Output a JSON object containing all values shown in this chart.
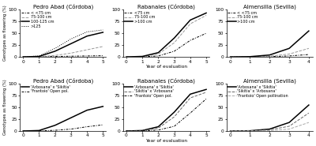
{
  "titles_top": [
    "Pedro Abad (Córdoba)",
    "Rabanales (Córdoba)",
    "Almensilla (Sevilla)"
  ],
  "titles_bot": [
    "Pedro Abad (Córdoba)",
    "Rabanales (Córdoba)",
    "Almensilla (Sevilla)"
  ],
  "ylabel": "Genotypes as flowering (%)",
  "xlabel": "Year of evaluation",
  "top_pedro": {
    "x": [
      0,
      1,
      2,
      3,
      4,
      5
    ],
    "lt75": [
      0,
      0.3,
      0.8,
      1.5,
      2.0,
      2.5
    ],
    "75_100": [
      0,
      0.5,
      3.0,
      8.0,
      15.0,
      22.0
    ],
    "100_125": [
      0,
      1.0,
      12.0,
      28.0,
      44.0,
      52.0
    ],
    "gt125": [
      0,
      2.0,
      18.0,
      38.0,
      53.0,
      57.0
    ],
    "xlim": [
      -0.2,
      5.2
    ],
    "ylim": [
      0,
      100
    ],
    "xticks": [
      0,
      1,
      2,
      3,
      4,
      5
    ]
  },
  "top_rabanales": {
    "x": [
      0,
      1,
      2,
      3,
      4,
      5
    ],
    "lt75": [
      0,
      0.2,
      2.0,
      12.0,
      35.0,
      50.0
    ],
    "75_100": [
      0,
      0.5,
      6.0,
      30.0,
      70.0,
      88.0
    ],
    "gt100": [
      0,
      1.0,
      9.0,
      40.0,
      78.0,
      93.0
    ],
    "xlim": [
      -0.2,
      5.2
    ],
    "ylim": [
      0,
      100
    ],
    "xticks": [
      0,
      1,
      2,
      3,
      4,
      5
    ]
  },
  "top_almensilla": {
    "x": [
      0,
      1,
      2,
      3,
      4
    ],
    "lt75": [
      0,
      0.0,
      0.5,
      2.0,
      5.0
    ],
    "75_100": [
      0,
      0.0,
      1.5,
      6.0,
      18.0
    ],
    "gt100": [
      0,
      0.5,
      4.0,
      18.0,
      55.0
    ],
    "xlim": [
      -0.2,
      4.2
    ],
    "ylim": [
      0,
      100
    ],
    "xticks": [
      0,
      1,
      2,
      3,
      4
    ]
  },
  "bot_pedro": {
    "x": [
      0,
      1,
      2,
      3,
      4,
      5
    ],
    "arb_sik": [
      0,
      1.0,
      12.0,
      28.0,
      44.0,
      52.0
    ],
    "frant_open": [
      0,
      0.3,
      1.5,
      4.0,
      9.0,
      13.0
    ],
    "xlim": [
      -0.2,
      5.2
    ],
    "ylim": [
      0,
      100
    ],
    "xticks": [
      0,
      1,
      2,
      3,
      4,
      5
    ]
  },
  "bot_rabanales": {
    "x": [
      0,
      1,
      2,
      3,
      4,
      5
    ],
    "arb_sik": [
      0,
      1.0,
      9.0,
      40.0,
      78.0,
      88.0
    ],
    "sik_arb": [
      0,
      0.5,
      6.0,
      30.0,
      70.0,
      82.0
    ],
    "frant_open": [
      0,
      0.2,
      2.0,
      10.0,
      38.0,
      68.0
    ],
    "xlim": [
      -0.2,
      5.2
    ],
    "ylim": [
      0,
      100
    ],
    "xticks": [
      0,
      1,
      2,
      3,
      4,
      5
    ]
  },
  "bot_almensilla": {
    "x": [
      0,
      1,
      2,
      3,
      4
    ],
    "arb_sik": [
      0,
      0.5,
      4.0,
      18.0,
      55.0
    ],
    "sik_arb": [
      0,
      0.3,
      2.5,
      10.0,
      38.0
    ],
    "frant_open": [
      0,
      0.1,
      0.8,
      4.0,
      18.0
    ],
    "xlim": [
      -0.2,
      4.2
    ],
    "ylim": [
      0,
      100
    ],
    "xticks": [
      0,
      1,
      2,
      3,
      4
    ]
  }
}
